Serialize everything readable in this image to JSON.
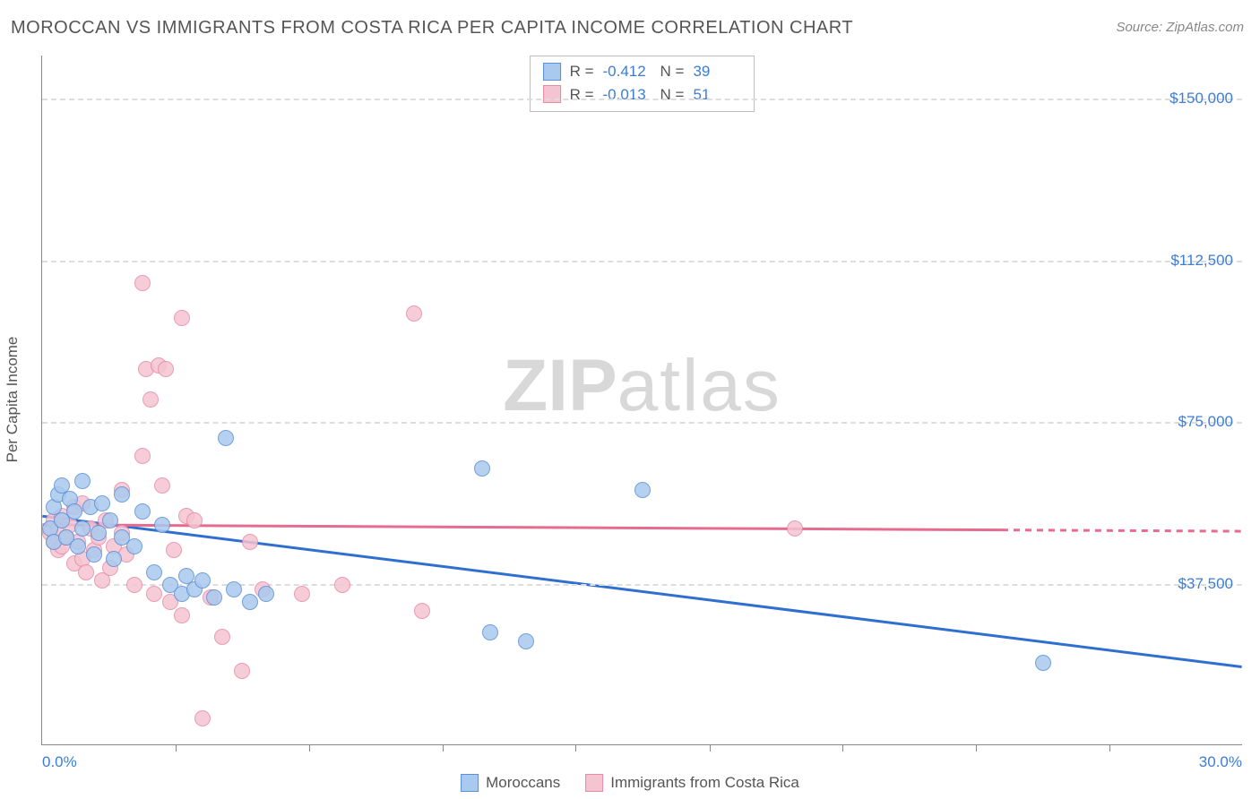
{
  "title": "MOROCCAN VS IMMIGRANTS FROM COSTA RICA PER CAPITA INCOME CORRELATION CHART",
  "source": "Source: ZipAtlas.com",
  "watermark": {
    "bold": "ZIP",
    "light": "atlas"
  },
  "chart": {
    "type": "scatter",
    "xlim": [
      0,
      30
    ],
    "ylim": [
      0,
      160000
    ],
    "x_unit": "%",
    "y_unit": "$",
    "x_start_label": "0.0%",
    "x_end_label": "30.0%",
    "y_axis_title": "Per Capita Income",
    "y_ticks": [
      37500,
      75000,
      112500,
      150000
    ],
    "y_tick_labels": [
      "$37,500",
      "$75,000",
      "$112,500",
      "$150,000"
    ],
    "x_ticks": [
      3.33,
      6.67,
      10,
      13.33,
      16.67,
      20,
      23.33,
      26.67
    ],
    "grid_color": "#dddddd",
    "axis_color": "#888888",
    "background_color": "#ffffff",
    "tick_label_color": "#3b7dd8",
    "axis_title_color": "#555555",
    "title_color": "#555555",
    "title_fontsize": 20,
    "label_fontsize": 17,
    "point_radius": 9,
    "series": [
      {
        "name": "Moroccans",
        "fill": "#aac9ee",
        "stroke": "#5b8fd6",
        "r": -0.412,
        "n": 39,
        "trend": {
          "x1": 0,
          "y1": 53000,
          "x2": 30,
          "y2": 18000,
          "stroke": "#2f6fd0",
          "width": 3,
          "dash_after_x": null
        },
        "points": [
          [
            0.2,
            50000
          ],
          [
            0.3,
            55000
          ],
          [
            0.3,
            47000
          ],
          [
            0.4,
            58000
          ],
          [
            0.5,
            52000
          ],
          [
            0.5,
            60000
          ],
          [
            0.6,
            48000
          ],
          [
            0.7,
            57000
          ],
          [
            0.8,
            54000
          ],
          [
            0.9,
            46000
          ],
          [
            1.0,
            61000
          ],
          [
            1.0,
            50000
          ],
          [
            1.2,
            55000
          ],
          [
            1.3,
            44000
          ],
          [
            1.4,
            49000
          ],
          [
            1.5,
            56000
          ],
          [
            1.7,
            52000
          ],
          [
            1.8,
            43000
          ],
          [
            2.0,
            48000
          ],
          [
            2.0,
            58000
          ],
          [
            2.3,
            46000
          ],
          [
            2.5,
            54000
          ],
          [
            2.8,
            40000
          ],
          [
            3.0,
            51000
          ],
          [
            3.2,
            37000
          ],
          [
            3.5,
            35000
          ],
          [
            3.6,
            39000
          ],
          [
            3.8,
            36000
          ],
          [
            4.0,
            38000
          ],
          [
            4.3,
            34000
          ],
          [
            4.6,
            71000
          ],
          [
            4.8,
            36000
          ],
          [
            5.2,
            33000
          ],
          [
            5.6,
            35000
          ],
          [
            11.0,
            64000
          ],
          [
            11.2,
            26000
          ],
          [
            12.1,
            24000
          ],
          [
            15.0,
            59000
          ],
          [
            25.0,
            19000
          ]
        ]
      },
      {
        "name": "Immigrants from Costa Rica",
        "fill": "#f4c4d1",
        "stroke": "#e88ba6",
        "r": -0.013,
        "n": 51,
        "trend": {
          "x1": 0,
          "y1": 51000,
          "x2": 30,
          "y2": 49500,
          "stroke": "#e56b8f",
          "width": 3,
          "dash_after_x": 24
        },
        "points": [
          [
            0.2,
            49000
          ],
          [
            0.3,
            47000
          ],
          [
            0.3,
            52000
          ],
          [
            0.4,
            45000
          ],
          [
            0.4,
            50000
          ],
          [
            0.5,
            53000
          ],
          [
            0.5,
            46000
          ],
          [
            0.6,
            48000
          ],
          [
            0.7,
            51000
          ],
          [
            0.8,
            42000
          ],
          [
            0.8,
            55000
          ],
          [
            0.9,
            47000
          ],
          [
            1.0,
            43000
          ],
          [
            1.0,
            56000
          ],
          [
            1.1,
            40000
          ],
          [
            1.2,
            50000
          ],
          [
            1.3,
            45000
          ],
          [
            1.4,
            48000
          ],
          [
            1.5,
            38000
          ],
          [
            1.6,
            52000
          ],
          [
            1.7,
            41000
          ],
          [
            1.8,
            46000
          ],
          [
            2.0,
            59000
          ],
          [
            2.0,
            49000
          ],
          [
            2.1,
            44000
          ],
          [
            2.3,
            37000
          ],
          [
            2.5,
            107000
          ],
          [
            2.5,
            67000
          ],
          [
            2.6,
            87000
          ],
          [
            2.7,
            80000
          ],
          [
            2.8,
            35000
          ],
          [
            2.9,
            88000
          ],
          [
            3.0,
            60000
          ],
          [
            3.1,
            87000
          ],
          [
            3.2,
            33000
          ],
          [
            3.3,
            45000
          ],
          [
            3.5,
            99000
          ],
          [
            3.5,
            30000
          ],
          [
            3.6,
            53000
          ],
          [
            3.8,
            52000
          ],
          [
            4.0,
            6000
          ],
          [
            4.2,
            34000
          ],
          [
            4.5,
            25000
          ],
          [
            5.0,
            17000
          ],
          [
            5.2,
            47000
          ],
          [
            5.5,
            36000
          ],
          [
            6.5,
            35000
          ],
          [
            7.5,
            37000
          ],
          [
            9.3,
            100000
          ],
          [
            9.5,
            31000
          ],
          [
            18.8,
            50000
          ]
        ]
      }
    ]
  },
  "stats_box": {
    "rows": [
      {
        "swatch_fill": "#aac9ee",
        "swatch_stroke": "#5b8fd6",
        "r_label": "R  =",
        "r_val": "-0.412",
        "n_label": "N  =",
        "n_val": "39"
      },
      {
        "swatch_fill": "#f4c4d1",
        "swatch_stroke": "#e88ba6",
        "r_label": "R  =",
        "r_val": "-0.013",
        "n_label": "N  =",
        "n_val": "51"
      }
    ]
  },
  "legend_bottom": [
    {
      "swatch_fill": "#aac9ee",
      "swatch_stroke": "#5b8fd6",
      "label": "Moroccans"
    },
    {
      "swatch_fill": "#f4c4d1",
      "swatch_stroke": "#e88ba6",
      "label": "Immigrants from Costa Rica"
    }
  ]
}
